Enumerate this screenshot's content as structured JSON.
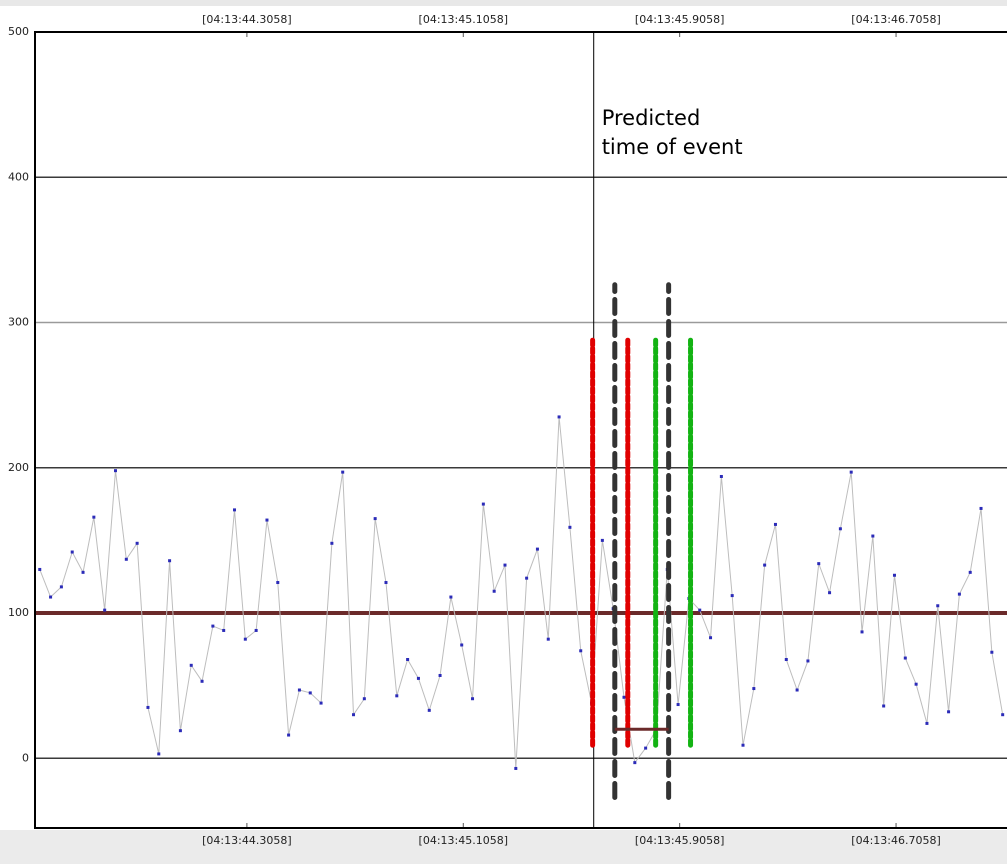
{
  "chart_data": {
    "type": "line",
    "x": [
      43.54,
      43.58,
      43.62,
      43.66,
      43.7,
      43.74,
      43.78,
      43.82,
      43.86,
      43.9,
      43.94,
      43.98,
      44.02,
      44.06,
      44.1,
      44.14,
      44.18,
      44.22,
      44.26,
      44.3,
      44.34,
      44.38,
      44.42,
      44.46,
      44.5,
      44.54,
      44.58,
      44.62,
      44.66,
      44.7,
      44.74,
      44.78,
      44.82,
      44.86,
      44.9,
      44.94,
      44.98,
      45.02,
      45.06,
      45.1,
      45.14,
      45.18,
      45.22,
      45.26,
      45.3,
      45.34,
      45.38,
      45.42,
      45.46,
      45.5,
      45.54,
      45.58,
      45.62,
      45.66,
      45.7,
      45.74,
      45.78,
      45.82,
      45.86,
      45.9,
      45.94,
      45.98,
      46.02,
      46.06,
      46.1,
      46.14,
      46.18,
      46.22,
      46.26,
      46.3,
      46.34,
      46.38,
      46.42,
      46.46,
      46.5,
      46.54,
      46.58,
      46.62,
      46.66,
      46.7,
      46.74,
      46.78,
      46.82,
      46.86,
      46.9,
      46.94,
      46.98,
      47.02,
      47.06,
      47.1
    ],
    "series": [
      {
        "color": "#bdbdbd",
        "marker_color": "#2b2bb8",
        "values": [
          130,
          111,
          118,
          142,
          128,
          166,
          102,
          198,
          137,
          148,
          35,
          3,
          136,
          19,
          64,
          53,
          91,
          88,
          171,
          82,
          88,
          164,
          121,
          16,
          47,
          45,
          38,
          148,
          197,
          30,
          41,
          165,
          121,
          43,
          68,
          55,
          33,
          57,
          111,
          78,
          41,
          175,
          115,
          133,
          -7,
          124,
          144,
          82,
          235,
          159,
          74,
          38,
          150,
          103,
          42,
          -3,
          7,
          20,
          130,
          37,
          110,
          102,
          83,
          194,
          112,
          9,
          48,
          133,
          161,
          68,
          47,
          67,
          134,
          114,
          158,
          197,
          87,
          153,
          36,
          126,
          69,
          51,
          24,
          105,
          32,
          113,
          128,
          172,
          73,
          30
        ]
      }
    ],
    "xlim": [
      43.5224,
      47.116
    ],
    "ylim": [
      -48,
      500
    ],
    "xticks": [
      {
        "value": 44.3058,
        "label": "[04:13:44.3058]"
      },
      {
        "value": 45.1058,
        "label": "[04:13:45.1058]"
      },
      {
        "value": 45.9058,
        "label": "[04:13:45.9058]"
      },
      {
        "value": 46.7058,
        "label": "[04:13:46.7058]"
      }
    ],
    "yticks": [
      0,
      100,
      200,
      300,
      400,
      500
    ],
    "grid": true,
    "threshold": {
      "value": 100,
      "color": "#6b2a2a"
    },
    "event_line": {
      "x": 45.588,
      "label": [
        "Predicted",
        "time of event"
      ]
    },
    "markers": [
      {
        "x": 45.584,
        "range": [
          9,
          288
        ],
        "color": "#e00000",
        "style": "dotted"
      },
      {
        "x": 45.714,
        "range": [
          9,
          288
        ],
        "color": "#e00000",
        "style": "dotted"
      },
      {
        "x": 45.817,
        "range": [
          9,
          288
        ],
        "color": "#13b313",
        "style": "dotted"
      },
      {
        "x": 45.946,
        "range": [
          9,
          288
        ],
        "color": "#13b313",
        "style": "dotted"
      },
      {
        "x": 45.666,
        "range": [
          -27,
          326
        ],
        "color": "#333333",
        "style": "dashed"
      },
      {
        "x": 45.865,
        "range": [
          -27,
          326
        ],
        "color": "#333333",
        "style": "dashed"
      }
    ],
    "bracket": {
      "x": [
        45.666,
        45.865
      ],
      "y": 20,
      "color": "#6b2a2a"
    }
  }
}
